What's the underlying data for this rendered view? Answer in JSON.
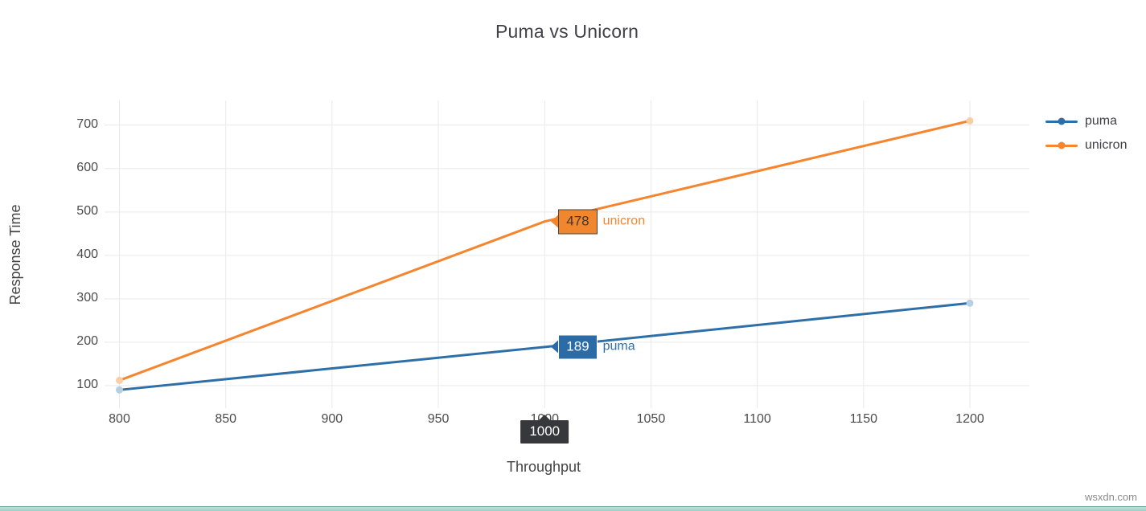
{
  "page": {
    "title": "Puma vs Unicorn",
    "watermark": "wsxdn.com"
  },
  "chart_data": {
    "type": "line",
    "title": "Puma vs Unicorn",
    "xlabel": "Throughput",
    "ylabel": "Response Time",
    "x": [
      800,
      1000,
      1200
    ],
    "series": [
      {
        "name": "puma",
        "color": "#2e6fa8",
        "marker_tint": "#b5cfe4",
        "values": [
          90,
          189,
          290
        ]
      },
      {
        "name": "unicron",
        "color": "#f5852e",
        "marker_tint": "#fbcda4",
        "values": [
          112,
          478,
          710
        ]
      }
    ],
    "xticks": [
      800,
      850,
      900,
      950,
      1000,
      1050,
      1100,
      1150,
      1200
    ],
    "yticks": [
      100,
      200,
      300,
      400,
      500,
      600,
      700
    ],
    "xlim": [
      793,
      1228
    ],
    "ylim": [
      48,
      757
    ],
    "grid": true,
    "gridcolor": "#e9e9e9",
    "legend_position": "right-top"
  },
  "hover": {
    "x": 1000,
    "x_label": "1000",
    "x_box_color": "#36383c",
    "points": [
      {
        "series": "unicron",
        "value_label": "478",
        "name_label": "unicron",
        "box_bg": "#f0862e",
        "box_border": "#444444",
        "box_text": "#3a3a3a",
        "name_color": "#f5852e"
      },
      {
        "series": "puma",
        "value_label": "189",
        "name_label": "puma",
        "box_bg": "#2c6ca6",
        "box_border": "#ffffff",
        "box_text": "#ffffff",
        "name_color": "#2e6fa8"
      }
    ]
  },
  "legend": {
    "items": [
      {
        "label": "puma"
      },
      {
        "label": "unicron"
      }
    ]
  },
  "bottom_bar": {
    "bg_top": "#bfe0da",
    "bg_bottom": "#9ccec6",
    "edge": "#74a89f"
  }
}
